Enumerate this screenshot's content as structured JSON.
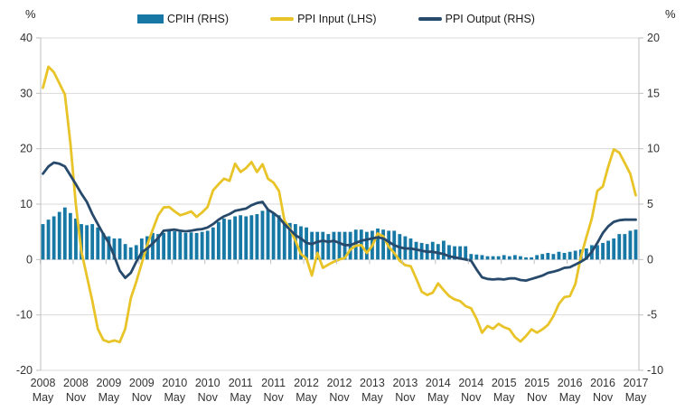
{
  "chart": {
    "left_unit": "%",
    "right_unit": "%"
  },
  "chart_data": {
    "type": "bar+line combo",
    "title": "",
    "x_frequency": "monthly",
    "x_start": "2008 May",
    "x_end": "2017 May",
    "n_points": 109,
    "grid": true,
    "legend_position": "top",
    "left_axis": {
      "label": "%",
      "ticks": [
        40,
        30,
        20,
        10,
        0,
        -10,
        -20
      ],
      "range": [
        -20,
        40
      ]
    },
    "right_axis": {
      "label": "%",
      "ticks": [
        20,
        15,
        10,
        5,
        0,
        -5,
        -10
      ],
      "range": [
        -10,
        20
      ]
    },
    "x_tick_labels": [
      {
        "year": "2008",
        "month": "May"
      },
      {
        "year": "2008",
        "month": "Nov"
      },
      {
        "year": "2009",
        "month": "May"
      },
      {
        "year": "2009",
        "month": "Nov"
      },
      {
        "year": "2010",
        "month": "May"
      },
      {
        "year": "2010",
        "month": "Nov"
      },
      {
        "year": "2011",
        "month": "May"
      },
      {
        "year": "2011",
        "month": "Nov"
      },
      {
        "year": "2012",
        "month": "May"
      },
      {
        "year": "2012",
        "month": "Nov"
      },
      {
        "year": "2013",
        "month": "May"
      },
      {
        "year": "2013",
        "month": "Nov"
      },
      {
        "year": "2014",
        "month": "May"
      },
      {
        "year": "2014",
        "month": "Nov"
      },
      {
        "year": "2015",
        "month": "May"
      },
      {
        "year": "2015",
        "month": "Nov"
      },
      {
        "year": "2016",
        "month": "May"
      },
      {
        "year": "2016",
        "month": "Nov"
      },
      {
        "year": "2017",
        "month": "May"
      }
    ],
    "series": [
      {
        "name": "CPIH (RHS)",
        "type": "bar",
        "axis": "right",
        "color": "#1778A5",
        "values": [
          3.2,
          3.6,
          3.9,
          4.3,
          4.7,
          4.2,
          3.7,
          3.2,
          3.1,
          3.2,
          2.9,
          2.4,
          2.1,
          1.9,
          1.9,
          1.4,
          1.1,
          1.3,
          1.9,
          2.1,
          2.4,
          2.3,
          2.4,
          2.6,
          2.55,
          2.5,
          2.4,
          2.45,
          2.4,
          2.5,
          2.6,
          2.9,
          3.4,
          3.7,
          3.6,
          3.9,
          4.0,
          3.9,
          4.0,
          4.1,
          4.4,
          4.5,
          4.2,
          4.0,
          3.4,
          3.3,
          3.2,
          3.0,
          2.9,
          2.5,
          2.5,
          2.5,
          2.3,
          2.5,
          2.5,
          2.5,
          2.5,
          2.7,
          2.7,
          2.5,
          2.6,
          2.8,
          2.7,
          2.6,
          2.6,
          2.3,
          2.1,
          1.9,
          1.6,
          1.5,
          1.4,
          1.6,
          1.4,
          1.7,
          1.3,
          1.2,
          1.2,
          1.2,
          0.5,
          0.45,
          0.4,
          0.3,
          0.3,
          0.3,
          0.4,
          0.3,
          0.4,
          0.3,
          0.2,
          0.2,
          0.4,
          0.5,
          0.6,
          0.5,
          0.7,
          0.6,
          0.7,
          0.8,
          0.9,
          1.0,
          1.3,
          1.3,
          1.5,
          1.7,
          1.9,
          2.3,
          2.3,
          2.6,
          2.7
        ]
      },
      {
        "name": "PPI Input (LHS)",
        "type": "line",
        "axis": "left",
        "color": "#E8C428",
        "values": [
          31.0,
          34.8,
          33.8,
          31.8,
          29.8,
          21.0,
          10.0,
          1.5,
          -3.0,
          -7.5,
          -12.5,
          -14.5,
          -14.9,
          -14.6,
          -14.9,
          -12.5,
          -7.0,
          -4.0,
          -0.7,
          2.6,
          5.4,
          8.0,
          9.4,
          9.5,
          8.7,
          8.0,
          8.3,
          8.7,
          7.7,
          8.5,
          9.5,
          12.5,
          13.6,
          14.6,
          14.2,
          17.3,
          15.8,
          16.5,
          17.6,
          15.8,
          17.2,
          14.6,
          13.9,
          12.4,
          7.0,
          5.6,
          3.4,
          1.0,
          0.2,
          -2.9,
          1.2,
          -1.5,
          -0.9,
          -0.4,
          0.0,
          0.3,
          1.8,
          2.5,
          2.6,
          1.2,
          2.5,
          4.7,
          4.2,
          2.3,
          1.2,
          -0.2,
          -1.0,
          -1.2,
          -3.4,
          -5.8,
          -6.4,
          -6.0,
          -4.3,
          -5.5,
          -6.6,
          -7.2,
          -7.5,
          -8.4,
          -8.8,
          -10.7,
          -13.2,
          -12.0,
          -12.5,
          -11.6,
          -12.2,
          -12.6,
          -14.0,
          -14.8,
          -13.8,
          -12.6,
          -13.2,
          -12.6,
          -11.8,
          -10.2,
          -8.0,
          -6.8,
          -6.6,
          -4.4,
          0.5,
          4.0,
          7.4,
          12.4,
          13.2,
          16.8,
          19.9,
          19.3,
          17.4,
          15.5,
          11.6
        ]
      },
      {
        "name": "PPI Output (RHS)",
        "type": "line",
        "axis": "right",
        "color": "#27496B",
        "values": [
          7.75,
          8.4,
          8.75,
          8.65,
          8.4,
          7.6,
          6.8,
          5.95,
          5.2,
          4.1,
          3.2,
          2.3,
          1.5,
          0.3,
          -1.0,
          -1.65,
          -1.2,
          -0.2,
          0.65,
          1.0,
          1.45,
          1.95,
          2.6,
          2.65,
          2.7,
          2.6,
          2.55,
          2.6,
          2.7,
          2.75,
          2.9,
          3.2,
          3.6,
          3.9,
          4.1,
          4.4,
          4.5,
          4.6,
          4.9,
          5.1,
          5.2,
          4.5,
          4.2,
          3.8,
          3.2,
          2.7,
          2.2,
          1.9,
          1.5,
          1.4,
          1.6,
          1.7,
          1.6,
          1.7,
          1.5,
          1.3,
          1.3,
          1.5,
          1.7,
          1.8,
          1.9,
          2.0,
          1.9,
          1.6,
          1.3,
          1.1,
          1.0,
          1.0,
          0.9,
          0.8,
          0.7,
          0.7,
          0.6,
          0.5,
          0.3,
          0.2,
          0.1,
          0.0,
          -0.1,
          -0.9,
          -1.6,
          -1.75,
          -1.8,
          -1.75,
          -1.8,
          -1.7,
          -1.7,
          -1.85,
          -1.9,
          -1.75,
          -1.6,
          -1.45,
          -1.2,
          -1.1,
          -0.95,
          -0.75,
          -0.7,
          -0.45,
          -0.2,
          0.1,
          0.7,
          1.5,
          2.4,
          3.0,
          3.4,
          3.55,
          3.6,
          3.6,
          3.6
        ]
      }
    ],
    "style": {
      "grid_color": "#D9D9D9",
      "axis_color": "#BFBFBF",
      "label_color": "#333333",
      "bar_width": 3.8,
      "line_width": 2.8
    }
  }
}
